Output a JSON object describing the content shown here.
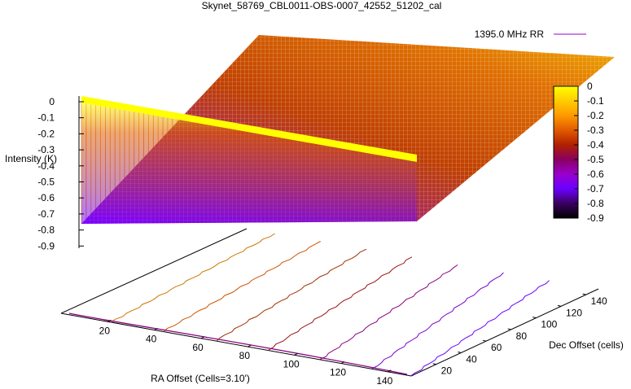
{
  "chart_data": {
    "type": "surface3d",
    "title": "Skynet_58769_CBL0011-OBS-0007_42552_51202_cal",
    "zlabel": "Intensity (K)",
    "xlabel": "RA Offset (Cells=3.10')",
    "ylabel": "Dec Offset (cells)",
    "legend": {
      "label": "1395.0 MHz RR",
      "color": "#9900cc",
      "position": "top-right"
    },
    "zlim": [
      -0.9,
      0
    ],
    "z_ticks": [
      "0",
      "-0.1",
      "-0.2",
      "-0.3",
      "-0.4",
      "-0.5",
      "-0.6",
      "-0.7",
      "-0.8",
      "-0.9"
    ],
    "x_ticks": [
      "20",
      "40",
      "60",
      "80",
      "100",
      "120",
      "140"
    ],
    "y_ticks": [
      "20",
      "40",
      "60",
      "80",
      "100",
      "120",
      "140"
    ],
    "colorbar": {
      "ticks": [
        "0",
        "-0.1",
        "-0.2",
        "-0.3",
        "-0.4",
        "-0.5",
        "-0.6",
        "-0.7",
        "-0.8",
        "-0.9"
      ],
      "stops": [
        "#ffff00",
        "#ffcc00",
        "#ff9900",
        "#e05a00",
        "#b02000",
        "#8a0060",
        "#9900cc",
        "#6a00ff",
        "#3a0060",
        "#000000"
      ]
    },
    "contour_colors": [
      "#cc7700",
      "#cc5500",
      "#a03000",
      "#9a1010",
      "#8a0080",
      "#7700cc",
      "#6600ff"
    ]
  }
}
